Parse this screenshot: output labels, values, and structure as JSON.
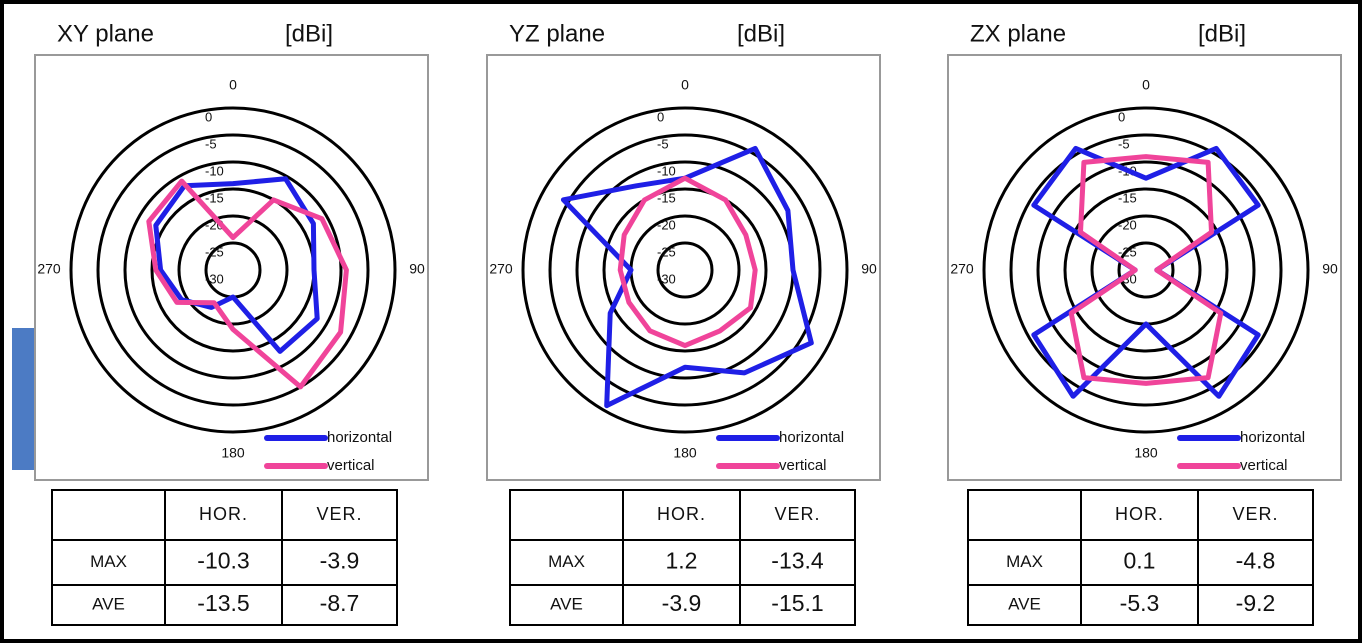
{
  "chart_data": [
    {
      "type": "polar",
      "title": "XY plane",
      "unit": "[dBi]",
      "theta": [
        0,
        30,
        60,
        90,
        120,
        150,
        180,
        210,
        240,
        270,
        300,
        330
      ],
      "angle_ticks": [
        0,
        90,
        180,
        270
      ],
      "rlim": [
        -30,
        0
      ],
      "rticks": [
        0,
        -5,
        -10,
        -15,
        -20,
        -25,
        -30
      ],
      "series": [
        {
          "name": "horizontal",
          "color": "#1f1fe6",
          "values": [
            -14,
            -10.5,
            -12.8,
            -15,
            -12,
            -12.6,
            -25,
            -22,
            -19,
            -16.6,
            -13.5,
            -12
          ]
        },
        {
          "name": "vertical",
          "color": "#f0449a",
          "values": [
            -24,
            -15,
            -11,
            -9,
            -7,
            -5,
            -19,
            -23,
            -18,
            -15.7,
            -12,
            -11
          ]
        }
      ],
      "legend": "lower right",
      "table": {
        "columns": [
          "HOR.",
          "VER."
        ],
        "rows": [
          {
            "label": "MAX",
            "values": [
              -10.3,
              -3.9
            ]
          },
          {
            "label": "AVE",
            "values": [
              -13.5,
              -8.7
            ]
          }
        ]
      }
    },
    {
      "type": "polar",
      "title": "YZ plane",
      "unit": "[dBi]",
      "theta": [
        0,
        30,
        60,
        90,
        120,
        150,
        180,
        210,
        240,
        270,
        300,
        330
      ],
      "angle_ticks": [
        0,
        90,
        180,
        270
      ],
      "rlim": [
        -30,
        0
      ],
      "rticks": [
        0,
        -5,
        -10,
        -15,
        -20,
        -25,
        -30
      ],
      "series": [
        {
          "name": "horizontal",
          "color": "#1f1fe6",
          "values": [
            -13,
            -4,
            -8,
            -10,
            -3,
            -8,
            -12,
            -1,
            -14,
            -20,
            -4,
            -12
          ]
        },
        {
          "name": "vertical",
          "color": "#f0449a",
          "values": [
            -13,
            -15,
            -17,
            -17,
            -16,
            -17,
            -16,
            -17,
            -18,
            -18,
            -17,
            -15
          ]
        }
      ],
      "legend": "lower right",
      "table": {
        "columns": [
          "HOR.",
          "VER."
        ],
        "rows": [
          {
            "label": "MAX",
            "values": [
              1.2,
              -13.4
            ]
          },
          {
            "label": "AVE",
            "values": [
              -3.9,
              -15.1
            ]
          }
        ]
      }
    },
    {
      "type": "polar",
      "title": "ZX plane",
      "unit": "[dBi]",
      "theta": [
        0,
        30,
        60,
        90,
        120,
        150,
        180,
        210,
        240,
        270,
        300,
        330
      ],
      "angle_ticks": [
        0,
        90,
        180,
        270
      ],
      "rlim": [
        -30,
        0
      ],
      "rticks": [
        0,
        -5,
        -10,
        -15,
        -20,
        -25,
        -30
      ],
      "series": [
        {
          "name": "horizontal",
          "color": "#1f1fe6",
          "values": [
            -13,
            -4,
            -6,
            -28,
            -6,
            -3,
            -20,
            -3,
            -6,
            -28,
            -6,
            -4
          ]
        },
        {
          "name": "vertical",
          "color": "#f0449a",
          "values": [
            -9,
            -7,
            -16,
            -28,
            -14,
            -7,
            -9,
            -7,
            -14,
            -28,
            -16,
            -7
          ]
        }
      ],
      "legend": "lower right",
      "table": {
        "columns": [
          "HOR.",
          "VER."
        ],
        "rows": [
          {
            "label": "MAX",
            "values": [
              0.1,
              -4.8
            ]
          },
          {
            "label": "AVE",
            "values": [
              -5.3,
              -9.2
            ]
          }
        ]
      }
    }
  ]
}
